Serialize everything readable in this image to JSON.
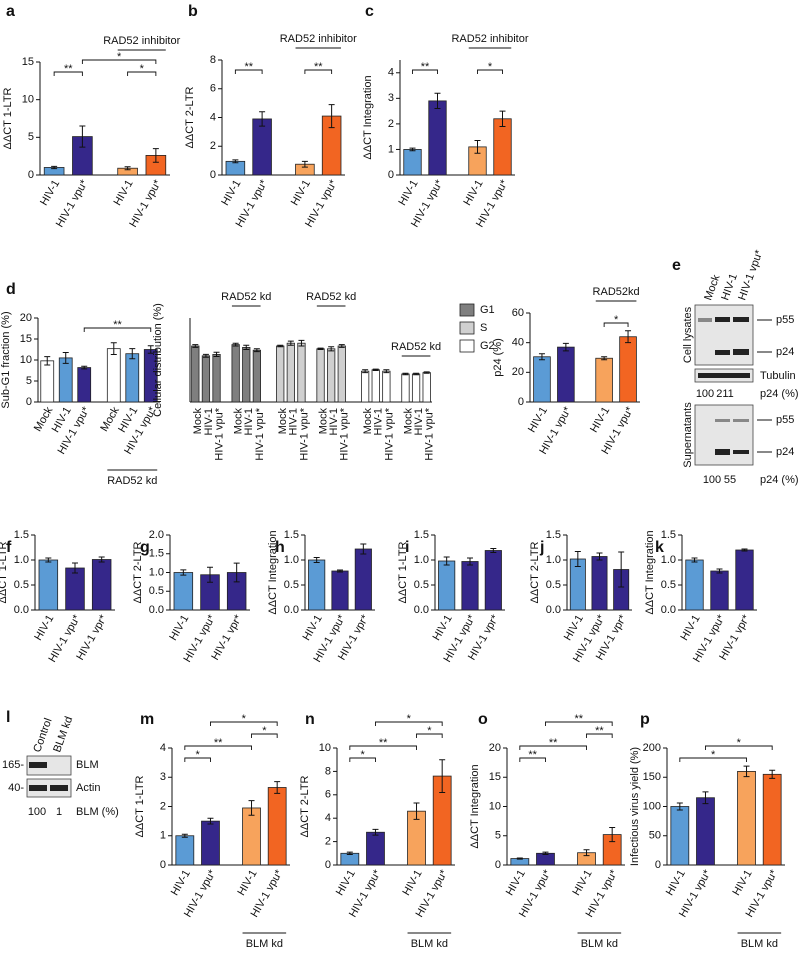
{
  "chart_data": [
    {
      "type": "bar",
      "label": "a",
      "y_label": "ΔΔCT 1-LTR",
      "categories": [
        "HIV-1",
        "HIV-1 vpu*",
        "HIV-1",
        "HIV-1 vpu*"
      ],
      "values": [
        1.0,
        5.1,
        0.9,
        2.6
      ],
      "errors": [
        0.15,
        1.4,
        0.2,
        0.9
      ],
      "colors": [
        "#5b9bd5",
        "#35278a",
        "#f7a35c",
        "#f26522"
      ],
      "ylim": [
        0,
        15
      ],
      "yticks": [
        0,
        5,
        10,
        15
      ],
      "group_labels": [
        {
          "text": "RAD52 inhibitor",
          "from": 2,
          "to": 3,
          "side": "top"
        }
      ],
      "annotations": [
        {
          "text": "**",
          "from": 0,
          "to": 1
        },
        {
          "text": "*",
          "from": 2,
          "to": 3
        },
        {
          "text": "*",
          "from": 1,
          "to": 3
        }
      ]
    },
    {
      "type": "bar",
      "label": "b",
      "y_label": "ΔΔCT 2-LTR",
      "categories": [
        "HIV-1",
        "HIV-1 vpu*",
        "HIV-1",
        "HIV-1 vpu*"
      ],
      "values": [
        0.95,
        3.9,
        0.75,
        4.1
      ],
      "errors": [
        0.1,
        0.5,
        0.2,
        0.8
      ],
      "colors": [
        "#5b9bd5",
        "#35278a",
        "#f7a35c",
        "#f26522"
      ],
      "ylim": [
        0,
        8
      ],
      "yticks": [
        0,
        2,
        4,
        6,
        8
      ],
      "group_labels": [
        {
          "text": "RAD52 inhibitor",
          "from": 2,
          "to": 3,
          "side": "top"
        }
      ],
      "annotations": [
        {
          "text": "**",
          "from": 0,
          "to": 1
        },
        {
          "text": "**",
          "from": 2,
          "to": 3
        }
      ]
    },
    {
      "type": "bar",
      "label": "c",
      "y_label": "ΔΔCT Integration",
      "categories": [
        "HIV-1",
        "HIV-1 vpu*",
        "HIV-1",
        "HIV-1 vpu*"
      ],
      "values": [
        1.0,
        2.9,
        1.1,
        2.2
      ],
      "errors": [
        0.05,
        0.3,
        0.25,
        0.3
      ],
      "colors": [
        "#5b9bd5",
        "#35278a",
        "#f7a35c",
        "#f26522"
      ],
      "ylim": [
        0,
        4.5
      ],
      "yticks": [
        0,
        1,
        2,
        3,
        4
      ],
      "group_labels": [
        {
          "text": "RAD52 inhibitor",
          "from": 2,
          "to": 3,
          "side": "top"
        }
      ],
      "annotations": [
        {
          "text": "**",
          "from": 0,
          "to": 1
        },
        {
          "text": "*",
          "from": 2,
          "to": 3
        }
      ]
    },
    {
      "type": "bar",
      "label": "d",
      "y_label": "Sub-G1 fraction (%)",
      "categories": [
        "Mock",
        "HIV-1",
        "HIV-1 vpu*",
        "Mock",
        "HIV-1",
        "HIV-1 vpu*"
      ],
      "values": [
        9.8,
        10.5,
        8.2,
        12.7,
        11.5,
        12.5
      ],
      "errors": [
        1.0,
        1.3,
        0.3,
        1.4,
        1.2,
        0.9
      ],
      "colors": [
        "#ffffff",
        "#5b9bd5",
        "#35278a",
        "#ffffff",
        "#5b9bd5",
        "#35278a"
      ],
      "ylim": [
        0,
        20
      ],
      "yticks": [
        0,
        5,
        10,
        15,
        20
      ],
      "group_labels": [
        {
          "text": "RAD52 kd",
          "from": 3,
          "to": 5,
          "side": "bottom"
        }
      ],
      "annotations": [
        {
          "text": "**",
          "from": 2,
          "to": 5
        }
      ]
    },
    {
      "type": "bar",
      "y_label": "Cellular distribution (%)",
      "categories": [
        "Mock",
        "HIV-1",
        "HIV-1 vpu*",
        "Mock",
        "HIV-1",
        "HIV-1 vpu*"
      ],
      "series": [
        {
          "name": "G1",
          "color": "#7f7f7f",
          "values": [
            40,
            33,
            34,
            41,
            39,
            37
          ],
          "errors": [
            1,
            1,
            1.5,
            1,
            1.5,
            1
          ]
        },
        {
          "name": "S",
          "color": "#d0d0d0",
          "values": [
            40,
            42,
            42,
            38,
            38,
            40
          ],
          "errors": [
            0.5,
            1.5,
            2,
            0.5,
            1.5,
            1
          ]
        },
        {
          "name": "G2",
          "color": "#ffffff",
          "values": [
            22,
            23,
            22,
            20,
            20,
            21
          ],
          "errors": [
            1,
            0.5,
            1,
            0.5,
            0.5,
            0.5
          ]
        }
      ],
      "ylim": [
        0,
        60
      ],
      "group_labels": [
        {
          "text": "RAD52 kd",
          "from": 3,
          "to": 5,
          "side": "top"
        }
      ]
    },
    {
      "type": "bar",
      "y_label": "p24 (%)",
      "categories": [
        "HIV-1",
        "HIV-1 vpu*",
        "HIV-1",
        "HIV-1 vpu*"
      ],
      "values": [
        30.5,
        37,
        29.5,
        44
      ],
      "errors": [
        2,
        2.5,
        1,
        4
      ],
      "colors": [
        "#5b9bd5",
        "#35278a",
        "#f7a35c",
        "#f26522"
      ],
      "ylim": [
        0,
        60
      ],
      "yticks": [
        0,
        20,
        40,
        60
      ],
      "group_labels": [
        {
          "text": "RAD52kd",
          "from": 2,
          "to": 3,
          "side": "top"
        }
      ],
      "annotations": [
        {
          "text": "*",
          "from": 2,
          "to": 3
        }
      ]
    },
    {
      "type": "bar",
      "label": "f",
      "y_label": "ΔΔCT 1-LTR",
      "categories": [
        "HIV-1",
        "HIV-1 vpu*",
        "HIV-1 vpr*"
      ],
      "values": [
        1.0,
        0.84,
        1.01
      ],
      "errors": [
        0.04,
        0.1,
        0.05
      ],
      "colors": [
        "#5b9bd5",
        "#35278a",
        "#35278a"
      ],
      "ylim": [
        0,
        1.5
      ],
      "yticks": [
        {
          "value": 0,
          "label": "0.0"
        },
        0.5,
        {
          "value": 1,
          "label": "1.0"
        },
        1.5
      ]
    },
    {
      "type": "bar",
      "label": "g",
      "y_label": "ΔΔCT 2-LTR",
      "categories": [
        "HIV-1",
        "HIV-1 vpu*",
        "HIV-1 vpr*"
      ],
      "values": [
        1.0,
        0.94,
        1.0
      ],
      "errors": [
        0.07,
        0.2,
        0.25
      ],
      "colors": [
        "#5b9bd5",
        "#35278a",
        "#35278a"
      ],
      "ylim": [
        0,
        2
      ],
      "yticks": [
        {
          "value": 0,
          "label": "0.0"
        },
        0.5,
        {
          "value": 1,
          "label": "1.0"
        },
        1.5,
        {
          "value": 2,
          "label": "2.0"
        }
      ]
    },
    {
      "type": "bar",
      "label": "h",
      "y_label": "ΔΔCT Integration",
      "categories": [
        "HIV-1",
        "HIV-1 vpu*",
        "HIV-1 vpr*"
      ],
      "values": [
        1.0,
        0.78,
        1.22
      ],
      "errors": [
        0.05,
        0.02,
        0.1
      ],
      "colors": [
        "#5b9bd5",
        "#35278a",
        "#35278a"
      ],
      "ylim": [
        0,
        1.5
      ],
      "yticks": [
        {
          "value": 0,
          "label": "0.0"
        },
        0.5,
        {
          "value": 1,
          "label": "1.0"
        },
        1.5
      ]
    },
    {
      "type": "bar",
      "label": "i",
      "y_label": "ΔΔCT 1-LTR",
      "categories": [
        "HIV-1",
        "HIV-1 vpu*",
        "HIV-1 vpr*"
      ],
      "values": [
        0.98,
        0.97,
        1.19
      ],
      "errors": [
        0.08,
        0.07,
        0.04
      ],
      "colors": [
        "#5b9bd5",
        "#35278a",
        "#35278a"
      ],
      "ylim": [
        0,
        1.5
      ],
      "yticks": [
        {
          "value": 0,
          "label": "0.0"
        },
        0.5,
        {
          "value": 1,
          "label": "1.0"
        },
        1.5
      ]
    },
    {
      "type": "bar",
      "label": "j",
      "y_label": "ΔΔCT 2-LTR",
      "categories": [
        "HIV-1",
        "HIV-1 vpu*",
        "HIV-1 vpr*"
      ],
      "values": [
        1.02,
        1.07,
        0.81
      ],
      "errors": [
        0.15,
        0.07,
        0.35
      ],
      "colors": [
        "#5b9bd5",
        "#35278a",
        "#35278a"
      ],
      "ylim": [
        0,
        1.5
      ],
      "yticks": [
        {
          "value": 0,
          "label": "0.0"
        },
        0.5,
        {
          "value": 1,
          "label": "1.0"
        },
        1.5
      ]
    },
    {
      "type": "bar",
      "label": "k",
      "y_label": "ΔΔCT Integration",
      "categories": [
        "HIV-1",
        "HIV-1 vpu*",
        "HIV-1 vpr*"
      ],
      "values": [
        1.0,
        0.78,
        1.2
      ],
      "errors": [
        0.04,
        0.04,
        0.02
      ],
      "colors": [
        "#5b9bd5",
        "#35278a",
        "#35278a"
      ],
      "ylim": [
        0,
        1.5
      ],
      "yticks": [
        {
          "value": 0,
          "label": "0.0"
        },
        0.5,
        {
          "value": 1,
          "label": "1.0"
        },
        1.5
      ]
    },
    {
      "type": "bar",
      "label": "m",
      "y_label": "ΔΔCT 1-LTR",
      "categories": [
        "HIV-1",
        "HIV-1 vpu*",
        "HIV-1",
        "HIV-1 vpu*"
      ],
      "values": [
        1.0,
        1.5,
        1.95,
        2.65
      ],
      "errors": [
        0.05,
        0.1,
        0.25,
        0.2
      ],
      "colors": [
        "#5b9bd5",
        "#35278a",
        "#f7a35c",
        "#f26522"
      ],
      "ylim": [
        0,
        4
      ],
      "yticks": [
        0,
        1,
        2,
        3,
        4
      ],
      "group_labels": [
        {
          "text": "BLM kd",
          "from": 2,
          "to": 3,
          "side": "bottom"
        }
      ],
      "annotations": [
        {
          "text": "*",
          "from": 0,
          "to": 1
        },
        {
          "text": "**",
          "from": 0,
          "to": 2
        },
        {
          "text": "*",
          "from": 2,
          "to": 3
        },
        {
          "text": "*",
          "from": 1,
          "to": 3
        }
      ]
    },
    {
      "type": "bar",
      "label": "n",
      "y_label": "ΔΔCT 2-LTR",
      "categories": [
        "HIV-1",
        "HIV-1 vpu*",
        "HIV-1",
        "HIV-1 vpu*"
      ],
      "values": [
        1.0,
        2.8,
        4.6,
        7.6
      ],
      "errors": [
        0.1,
        0.25,
        0.7,
        1.4
      ],
      "colors": [
        "#5b9bd5",
        "#35278a",
        "#f7a35c",
        "#f26522"
      ],
      "ylim": [
        0,
        10
      ],
      "yticks": [
        0,
        2,
        4,
        6,
        8,
        10
      ],
      "group_labels": [
        {
          "text": "BLM kd",
          "from": 2,
          "to": 3,
          "side": "bottom"
        }
      ],
      "annotations": [
        {
          "text": "*",
          "from": 0,
          "to": 1
        },
        {
          "text": "**",
          "from": 0,
          "to": 2
        },
        {
          "text": "*",
          "from": 2,
          "to": 3
        },
        {
          "text": "*",
          "from": 1,
          "to": 3
        }
      ]
    },
    {
      "type": "bar",
      "label": "o",
      "y_label": "ΔΔCT Integration",
      "categories": [
        "HIV-1",
        "HIV-1 vpu*",
        "HIV-1",
        "HIV-1 vpu*"
      ],
      "values": [
        1.1,
        2.0,
        2.1,
        5.2
      ],
      "errors": [
        0.1,
        0.2,
        0.5,
        1.2
      ],
      "colors": [
        "#5b9bd5",
        "#35278a",
        "#f7a35c",
        "#f26522"
      ],
      "ylim": [
        0,
        20
      ],
      "yticks": [
        0,
        5,
        10,
        15,
        20
      ],
      "group_labels": [
        {
          "text": "BLM kd",
          "from": 2,
          "to": 3,
          "side": "bottom"
        }
      ],
      "annotations": [
        {
          "text": "**",
          "from": 0,
          "to": 1
        },
        {
          "text": "**",
          "from": 0,
          "to": 2
        },
        {
          "text": "**",
          "from": 2,
          "to": 3
        },
        {
          "text": "**",
          "from": 1,
          "to": 3
        }
      ]
    },
    {
      "type": "bar",
      "label": "p",
      "y_label": "Infectious virus yield (%)",
      "categories": [
        "HIV-1",
        "HIV-1 vpu*",
        "HIV-1",
        "HIV-1 vpu*"
      ],
      "values": [
        100,
        115,
        160,
        155
      ],
      "errors": [
        6,
        10,
        9,
        7
      ],
      "colors": [
        "#5b9bd5",
        "#35278a",
        "#f7a35c",
        "#f26522"
      ],
      "ylim": [
        0,
        200
      ],
      "yticks": [
        0,
        50,
        100,
        150,
        200
      ],
      "group_labels": [
        {
          "text": "BLM kd",
          "from": 2,
          "to": 3,
          "side": "bottom"
        }
      ],
      "annotations": [
        {
          "text": "*",
          "from": 0,
          "to": 2
        },
        {
          "text": "*",
          "from": 1,
          "to": 3
        }
      ]
    }
  ],
  "blot_e": {
    "label": "e",
    "lanes": [
      "Mock",
      "HIV-1",
      "HIV-1 vpu*"
    ],
    "lysate_title": "Cell lysates",
    "lysate_bands": [
      "p55",
      "p24"
    ],
    "loading": "Tubulin",
    "lysate_quant": [
      100,
      211
    ],
    "lysate_quant_label": "p24 (%)",
    "sup_title": "Supernatants",
    "sup_bands": [
      "p55",
      "p24"
    ],
    "sup_quant": [
      100,
      55
    ],
    "sup_quant_label": "p24 (%)"
  },
  "blot_l": {
    "label": "l",
    "lanes": [
      "Control",
      "BLM kd"
    ],
    "markers": [
      "165-",
      "40-"
    ],
    "bands": [
      "BLM",
      "Actin"
    ],
    "quant": [
      100,
      1
    ],
    "quant_label": "BLM (%)"
  }
}
